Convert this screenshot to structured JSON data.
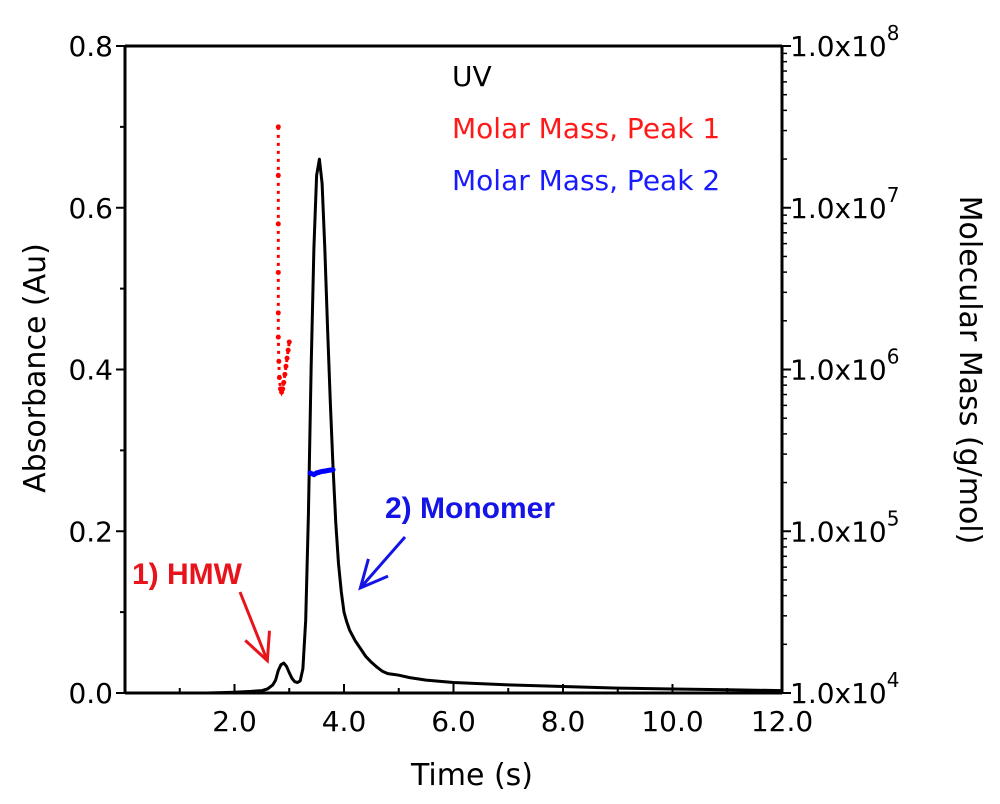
{
  "chart_data": {
    "type": "line",
    "title": "",
    "xlabel": "Time (s)",
    "ylabel_left": "Absorbance (Au)",
    "ylabel_right": "Molecular Mass (g/mol)",
    "xlim": [
      0,
      12.0
    ],
    "ylim_left": [
      0,
      0.8
    ],
    "ylim_right_log10": [
      4,
      8
    ],
    "x_ticks": [
      2.0,
      4.0,
      6.0,
      8.0,
      10.0,
      12.0
    ],
    "x_tick_labels": [
      "2.0",
      "4.0",
      "6.0",
      "8.0",
      "10.0",
      "12.0"
    ],
    "y_left_ticks": [
      0.0,
      0.2,
      0.4,
      0.6,
      0.8
    ],
    "y_left_tick_labels": [
      "0.0",
      "0.2",
      "0.4",
      "0.6",
      "0.8"
    ],
    "y_right_ticks_log10": [
      4,
      5,
      6,
      7,
      8
    ],
    "y_right_tick_base": "1.0x10",
    "y_right_tick_exponents": [
      "4",
      "5",
      "6",
      "7",
      "8"
    ],
    "grid": false,
    "legend_position": "top-right",
    "series": [
      {
        "name": "UV",
        "color": "#000000",
        "axis": "left",
        "x": [
          0.0,
          0.5,
          1.0,
          1.5,
          2.0,
          2.3,
          2.5,
          2.6,
          2.7,
          2.75,
          2.8,
          2.85,
          2.9,
          2.95,
          3.0,
          3.05,
          3.1,
          3.15,
          3.2,
          3.25,
          3.3,
          3.35,
          3.4,
          3.45,
          3.5,
          3.55,
          3.6,
          3.65,
          3.7,
          3.75,
          3.8,
          3.85,
          3.9,
          3.95,
          4.0,
          4.05,
          4.1,
          4.2,
          4.3,
          4.4,
          4.5,
          4.6,
          4.7,
          4.8,
          4.9,
          5.0,
          5.2,
          5.5,
          6.0,
          7.0,
          8.0,
          9.0,
          10.0,
          11.0,
          12.0
        ],
        "values": [
          0.0,
          0.0,
          0.0,
          0.0,
          0.001,
          0.002,
          0.003,
          0.005,
          0.01,
          0.016,
          0.028,
          0.035,
          0.037,
          0.033,
          0.025,
          0.018,
          0.014,
          0.013,
          0.015,
          0.03,
          0.09,
          0.22,
          0.4,
          0.55,
          0.64,
          0.66,
          0.63,
          0.55,
          0.45,
          0.36,
          0.28,
          0.21,
          0.16,
          0.125,
          0.1,
          0.088,
          0.078,
          0.065,
          0.055,
          0.045,
          0.038,
          0.032,
          0.027,
          0.024,
          0.023,
          0.022,
          0.019,
          0.016,
          0.013,
          0.01,
          0.008,
          0.006,
          0.005,
          0.004,
          0.003
        ]
      },
      {
        "name": "Molar Mass, Peak 1",
        "color": "#ff0000",
        "axis": "right",
        "x": [
          2.8,
          2.8,
          2.8,
          2.8,
          2.8,
          2.8,
          2.81,
          2.82,
          2.84,
          2.86,
          2.88,
          2.9,
          2.92,
          2.94,
          2.96,
          2.98,
          3.0
        ],
        "values_log10": [
          7.5,
          7.2,
          6.9,
          6.6,
          6.35,
          6.2,
          6.05,
          5.95,
          5.88,
          5.86,
          5.88,
          5.92,
          5.97,
          6.02,
          6.07,
          6.12,
          6.17
        ]
      },
      {
        "name": "Molar Mass, Peak 2",
        "color": "#0000ff",
        "axis": "right",
        "x": [
          3.38,
          3.45,
          3.5,
          3.55,
          3.6,
          3.65,
          3.7,
          3.75,
          3.8
        ],
        "values_log10": [
          5.36,
          5.35,
          5.36,
          5.365,
          5.37,
          5.372,
          5.375,
          5.378,
          5.38
        ]
      }
    ],
    "legend": [
      "UV",
      "Molar Mass, Peak 1",
      "Molar Mass, Peak 2"
    ],
    "annotations": [
      {
        "text": "1) HMW",
        "color": "#e8141c",
        "target_x": 2.6,
        "target_y": 0.04
      },
      {
        "text": "2) Monomer",
        "color": "#1414e6",
        "target_x": 4.3,
        "target_y": 0.13
      }
    ]
  }
}
